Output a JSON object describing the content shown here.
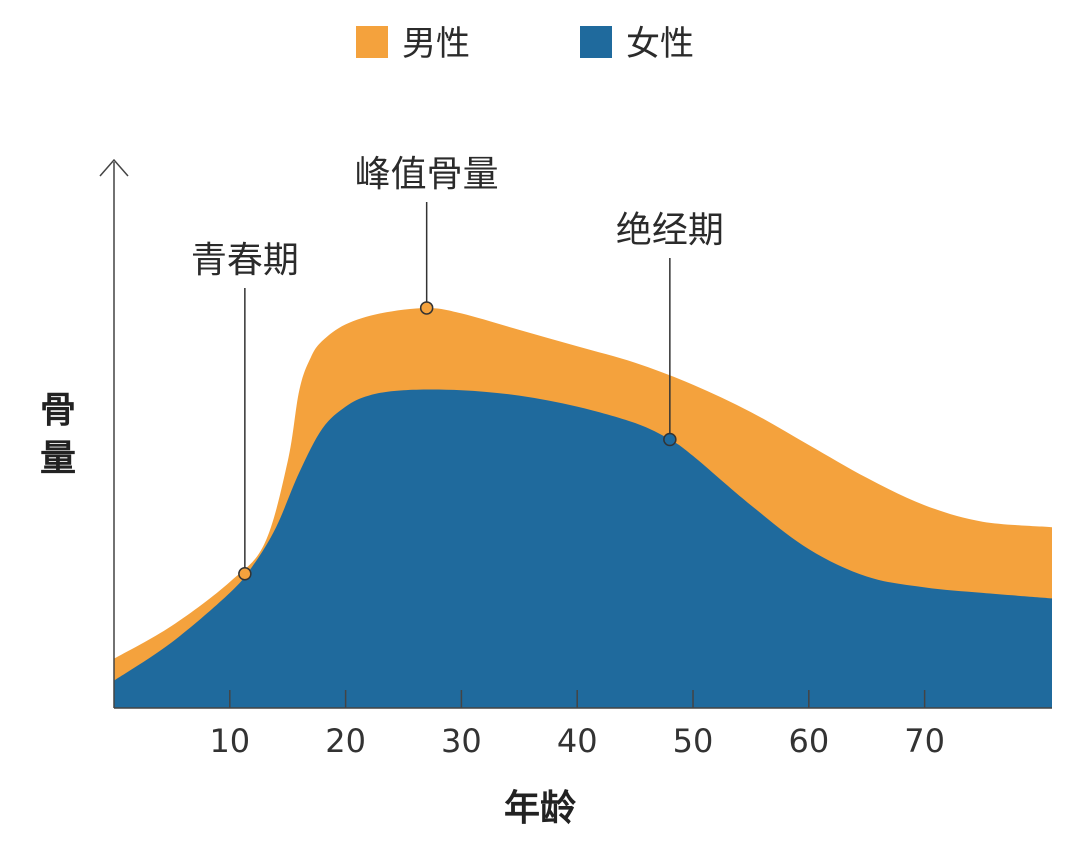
{
  "chart_data": {
    "type": "area",
    "xlabel": "年龄",
    "ylabel": "骨量",
    "xlim": [
      0,
      81
    ],
    "ylim": [
      0,
      100
    ],
    "x_ticks": [
      10,
      20,
      30,
      40,
      50,
      60,
      70
    ],
    "legend_position": "top-center",
    "grid": false,
    "series": [
      {
        "name": "男性",
        "color": "#f4a23d",
        "x": [
          0,
          5,
          10,
          13,
          15,
          16,
          17,
          18,
          20,
          23,
          27,
          30,
          35,
          40,
          45,
          50,
          55,
          60,
          65,
          70,
          75,
          81
        ],
        "values": [
          9,
          15,
          23,
          30,
          45,
          58,
          64,
          67,
          70,
          72,
          73,
          72,
          69,
          66,
          63,
          59,
          54,
          48,
          42,
          37,
          34,
          33
        ]
      },
      {
        "name": "女性",
        "color": "#1f6a9d",
        "x": [
          0,
          5,
          10,
          12,
          14,
          16,
          18,
          20,
          22,
          25,
          30,
          35,
          40,
          45,
          48,
          50,
          55,
          60,
          65,
          70,
          75,
          81
        ],
        "values": [
          5,
          12,
          21,
          26,
          33,
          43,
          51,
          55,
          57,
          58,
          58,
          57,
          55,
          52,
          49,
          46,
          37,
          29,
          24,
          22,
          21,
          20
        ]
      }
    ],
    "annotations": [
      {
        "label": "青春期",
        "x": 11.3,
        "y": 24.5
      },
      {
        "label": "峰值骨量",
        "x": 27,
        "y": 73
      },
      {
        "label": "绝经期",
        "x": 48,
        "y": 49
      }
    ]
  }
}
